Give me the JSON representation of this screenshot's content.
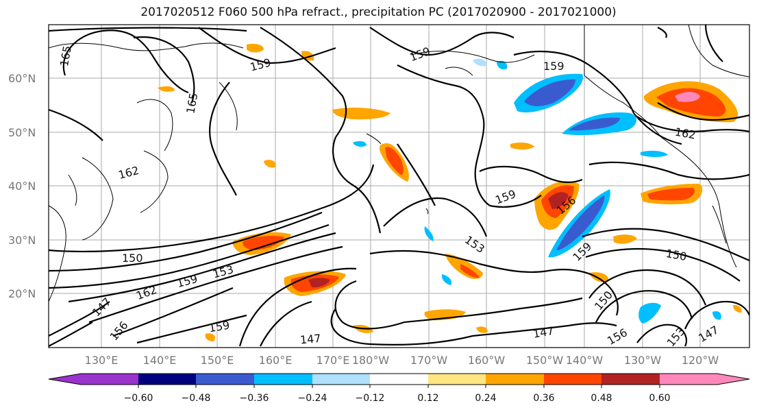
{
  "title": "2017020512 F060 500 hPa refract., precipitation PC (2017020900 - 2017021000)",
  "lat_labels": [
    "60°N",
    "50°N",
    "40°N",
    "30°N",
    "20°N"
  ],
  "lon_labels": [
    "130°E",
    "140°E",
    "150°E",
    "160°E",
    "170°E",
    "180°W",
    "170°W",
    "160°W",
    "150°W",
    "140°W",
    "130°W",
    "120°W"
  ],
  "colorbar": {
    "ticks": [
      "−0.60",
      "−0.48",
      "−0.36",
      "−0.24",
      "−0.12",
      "0.12",
      "0.24",
      "0.36",
      "0.48",
      "0.60"
    ],
    "colors": [
      "#9933cc",
      "#000080",
      "#3a5bd0",
      "#00bfff",
      "#b0e0ff",
      "#ffffff",
      "#ffe680",
      "#ffa500",
      "#ff4500",
      "#b22222",
      "#ff88bb"
    ]
  },
  "contour_labels": [
    "165",
    "159",
    "165",
    "162",
    "159",
    "159",
    "162",
    "159",
    "156",
    "153",
    "159",
    "150",
    "153",
    "159",
    "162",
    "147",
    "156",
    "159",
    "147",
    "150",
    "150",
    "147",
    "156",
    "153",
    "147"
  ]
}
